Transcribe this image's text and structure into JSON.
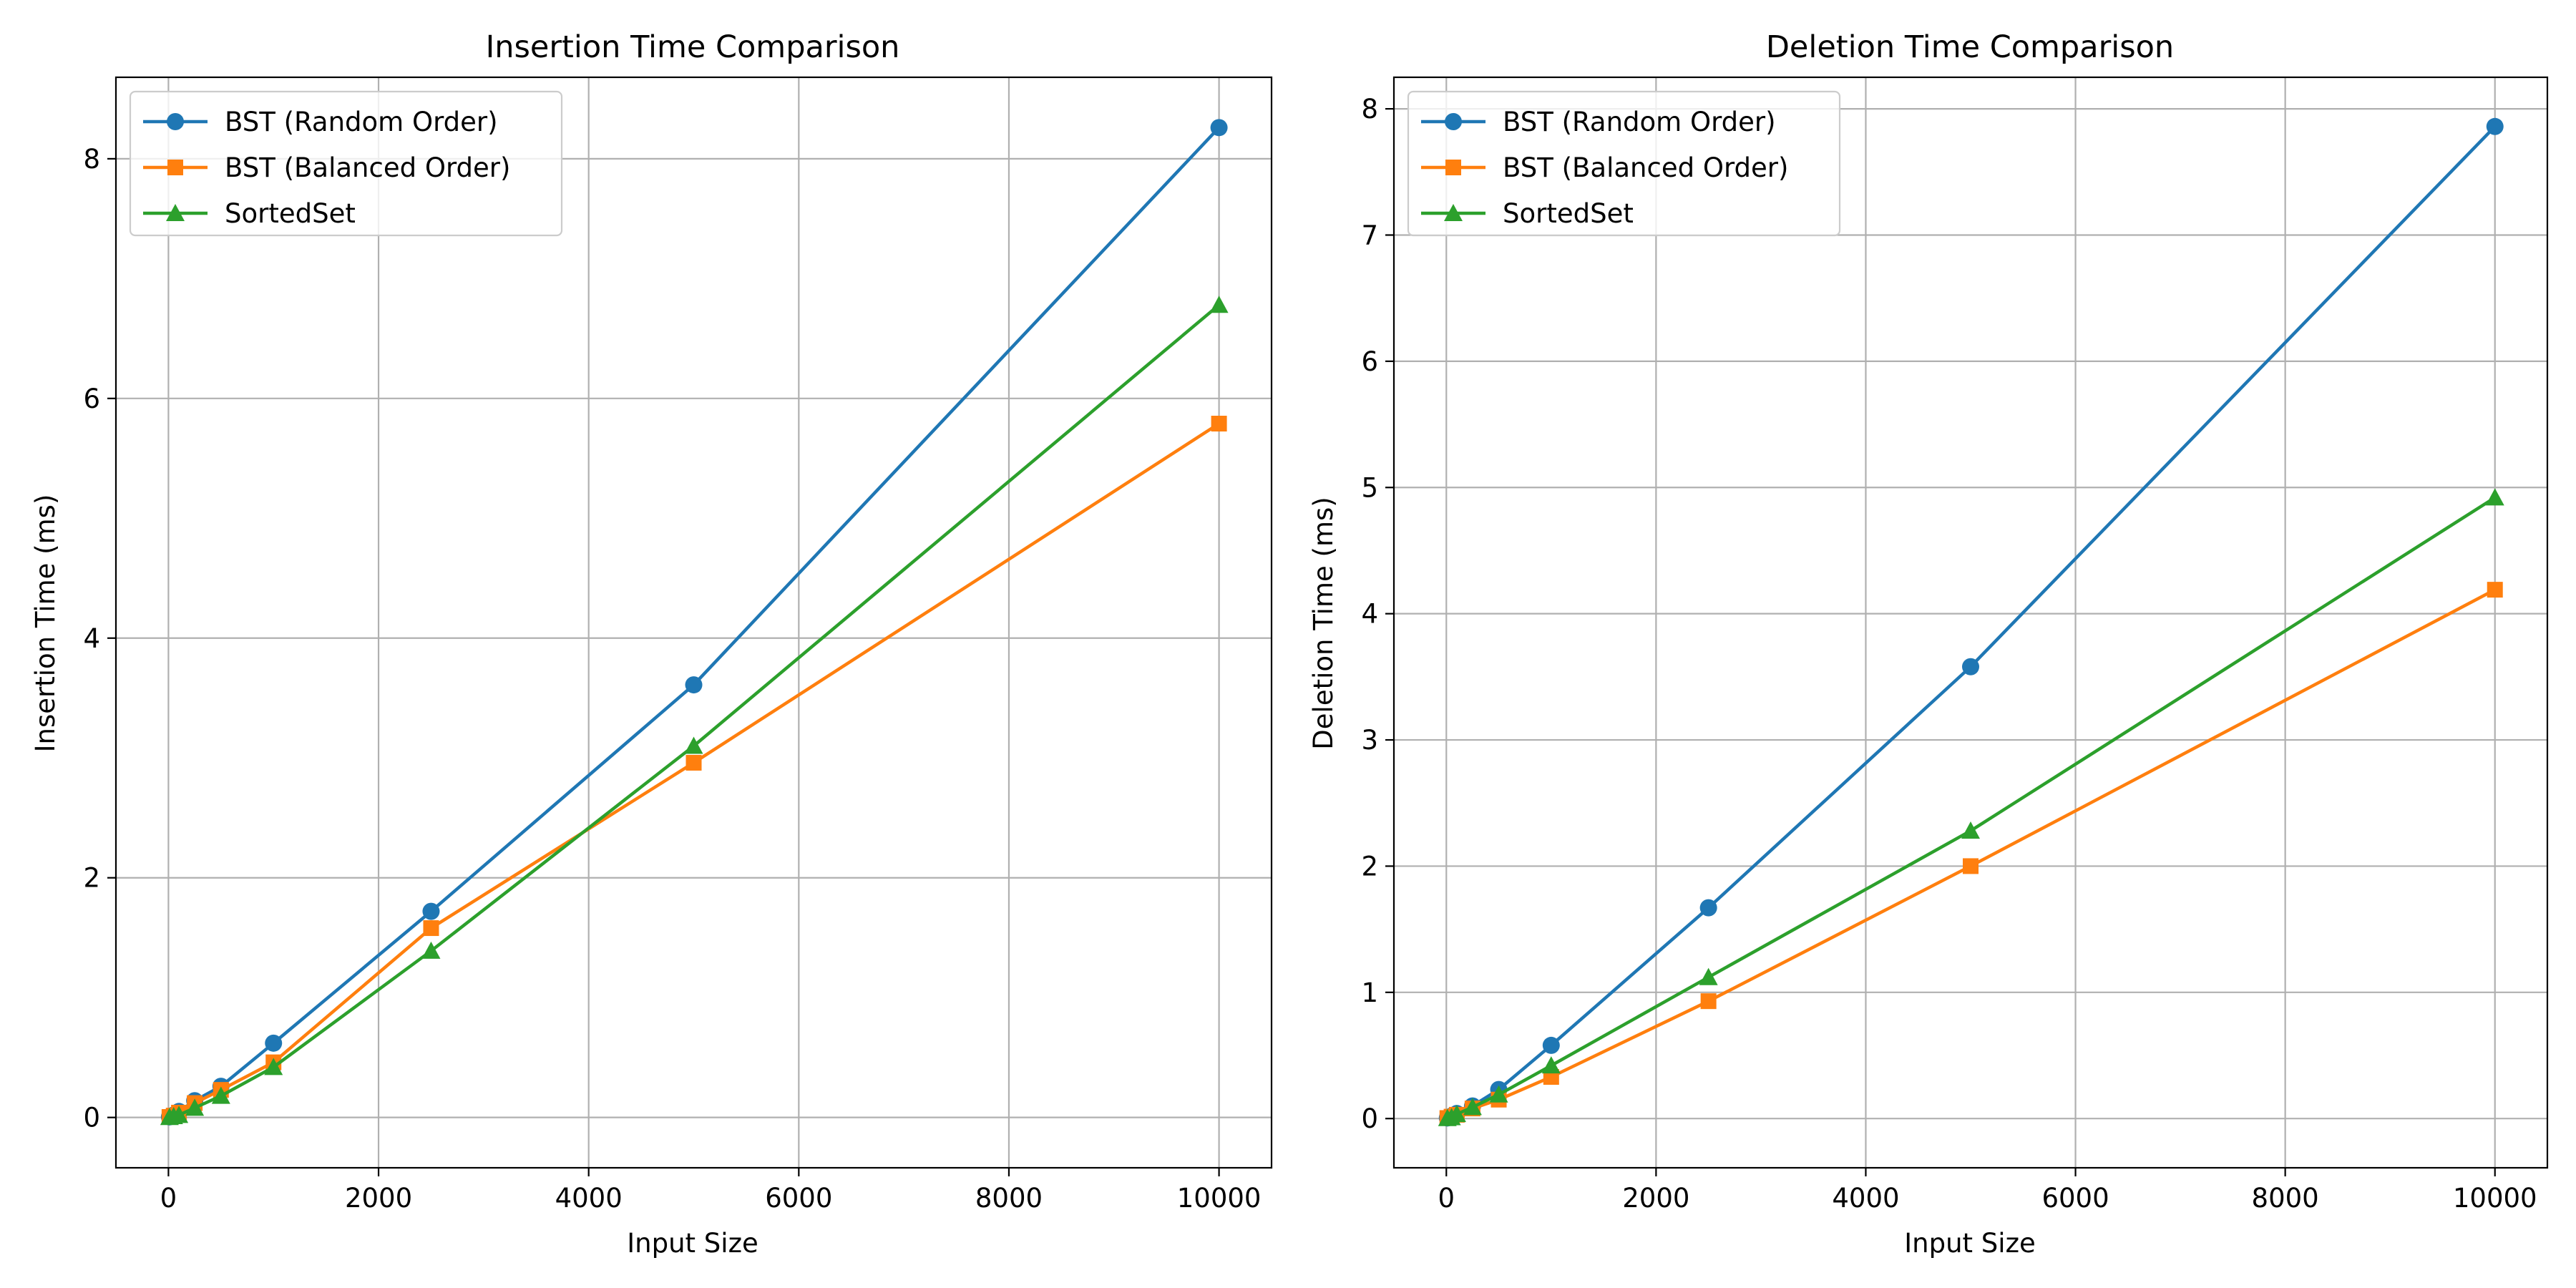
{
  "chart_data": [
    {
      "type": "line",
      "title": "Insertion Time Comparison",
      "xlabel": "Input Size",
      "ylabel": "Insertion Time (ms)",
      "xlim": [
        -500,
        10500
      ],
      "ylim": [
        -0.42,
        8.68
      ],
      "xticks": [
        0,
        2000,
        4000,
        6000,
        8000,
        10000
      ],
      "yticks": [
        0,
        2,
        4,
        6,
        8
      ],
      "grid": true,
      "legend_position": "upper-left",
      "x": [
        10,
        50,
        100,
        250,
        500,
        1000,
        2500,
        5000,
        10000
      ],
      "series": [
        {
          "name": "BST (Random Order)",
          "color": "#1f77b4",
          "marker": "circle",
          "values": [
            0.005,
            0.02,
            0.05,
            0.14,
            0.26,
            0.62,
            1.72,
            3.61,
            8.26
          ]
        },
        {
          "name": "BST (Balanced Order)",
          "color": "#ff7f0e",
          "marker": "square",
          "values": [
            0.004,
            0.015,
            0.04,
            0.12,
            0.23,
            0.46,
            1.58,
            2.96,
            5.79
          ]
        },
        {
          "name": "SortedSet",
          "color": "#2ca02c",
          "marker": "triangle",
          "values": [
            0.003,
            0.01,
            0.02,
            0.08,
            0.18,
            0.42,
            1.39,
            3.1,
            6.78
          ]
        }
      ]
    },
    {
      "type": "line",
      "title": "Deletion Time Comparison",
      "xlabel": "Input Size",
      "ylabel": "Deletion Time (ms)",
      "xlim": [
        -500,
        10500
      ],
      "ylim": [
        -0.39,
        8.25
      ],
      "xticks": [
        0,
        2000,
        4000,
        6000,
        8000,
        10000
      ],
      "yticks": [
        0,
        1,
        2,
        3,
        4,
        5,
        6,
        7,
        8
      ],
      "grid": true,
      "legend_position": "upper-left",
      "x": [
        10,
        50,
        100,
        250,
        500,
        1000,
        2500,
        5000,
        10000
      ],
      "series": [
        {
          "name": "BST (Random Order)",
          "color": "#1f77b4",
          "marker": "circle",
          "values": [
            0.005,
            0.02,
            0.04,
            0.1,
            0.23,
            0.58,
            1.67,
            3.58,
            7.86
          ]
        },
        {
          "name": "BST (Balanced Order)",
          "color": "#ff7f0e",
          "marker": "square",
          "values": [
            0.004,
            0.015,
            0.03,
            0.08,
            0.15,
            0.33,
            0.93,
            2.0,
            4.19
          ]
        },
        {
          "name": "SortedSet",
          "color": "#2ca02c",
          "marker": "triangle",
          "values": [
            0.003,
            0.01,
            0.035,
            0.09,
            0.19,
            0.42,
            1.12,
            2.28,
            4.92
          ]
        }
      ]
    }
  ]
}
